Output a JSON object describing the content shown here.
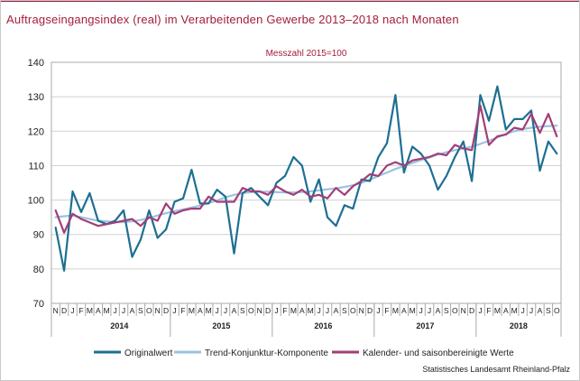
{
  "title": "Auftragseingangsindex (real) im Verarbeitenden Gewerbe 2013–2018 nach Monaten",
  "source": "Statistisches Landesamt  Rheinland-Pfalz",
  "chart_data": {
    "type": "line",
    "subtitle": "Messzahl 2015=100",
    "ylim": [
      70,
      140
    ],
    "yticks": [
      70,
      80,
      90,
      100,
      110,
      120,
      130,
      140
    ],
    "grid": true,
    "legend_position": "bottom",
    "x": [
      "N",
      "D",
      "J",
      "F",
      "M",
      "A",
      "M",
      "J",
      "J",
      "A",
      "S",
      "O",
      "N",
      "D",
      "J",
      "F",
      "M",
      "A",
      "M",
      "J",
      "J",
      "A",
      "S",
      "O",
      "N",
      "D",
      "J",
      "F",
      "M",
      "A",
      "M",
      "J",
      "J",
      "A",
      "S",
      "O",
      "N",
      "D",
      "J",
      "F",
      "M",
      "A",
      "M",
      "J",
      "J",
      "A",
      "S",
      "O",
      "N",
      "D",
      "J",
      "F",
      "M",
      "A",
      "M",
      "J",
      "J",
      "A",
      "S",
      "O"
    ],
    "years": [
      {
        "label": "2014",
        "start": 2,
        "end": 13
      },
      {
        "label": "2015",
        "start": 14,
        "end": 25
      },
      {
        "label": "2016",
        "start": 26,
        "end": 37
      },
      {
        "label": "2017",
        "start": 38,
        "end": 49
      },
      {
        "label": "2018",
        "start": 50,
        "end": 59
      }
    ],
    "series": [
      {
        "name": "Originalwert",
        "color": "#1d6f93",
        "width": 2.2,
        "values": [
          92.0,
          79.5,
          102.5,
          96.5,
          102.0,
          94.0,
          93.0,
          94.0,
          97.0,
          83.5,
          88.5,
          97.0,
          89.0,
          91.5,
          99.5,
          100.5,
          108.8,
          99.0,
          99.0,
          103.0,
          101.0,
          84.5,
          102.0,
          103.5,
          101.0,
          98.5,
          105.0,
          107.0,
          112.5,
          110.0,
          99.5,
          106.0,
          95.0,
          92.5,
          98.5,
          97.5,
          106.0,
          105.5,
          112.5,
          116.5,
          130.5,
          108.0,
          115.5,
          113.5,
          110.0,
          103.0,
          107.0,
          112.5,
          117.0,
          105.5,
          130.5,
          123.0,
          133.0,
          120.5,
          123.5,
          123.5,
          126.0,
          108.5,
          117.0,
          113.5
        ]
      },
      {
        "name": "Trend-Konjunktur-Komponente",
        "color": "#9bc3e0",
        "width": 2.2,
        "values": [
          95.0,
          95.3,
          95.5,
          95.0,
          94.5,
          94.0,
          93.8,
          93.6,
          93.6,
          93.8,
          94.2,
          94.8,
          95.5,
          96.2,
          96.8,
          97.3,
          97.8,
          98.4,
          99.1,
          99.9,
          100.8,
          101.5,
          102.0,
          102.3,
          102.4,
          102.4,
          102.3,
          102.2,
          102.2,
          102.3,
          102.5,
          102.8,
          103.1,
          103.4,
          103.8,
          104.3,
          105.0,
          105.9,
          107.0,
          108.0,
          109.0,
          109.9,
          110.8,
          111.6,
          112.4,
          113.2,
          113.9,
          114.5,
          115.0,
          115.5,
          116.3,
          117.2,
          118.2,
          119.2,
          120.0,
          120.6,
          121.0,
          121.3,
          121.5,
          121.6
        ]
      },
      {
        "name": "Kalender- und saisonbereinigte Werte",
        "color": "#a23e78",
        "width": 2.2,
        "values": [
          97.0,
          90.5,
          96.0,
          94.5,
          93.5,
          92.5,
          93.0,
          93.5,
          94.0,
          94.5,
          92.5,
          95.0,
          94.0,
          99.0,
          96.0,
          97.0,
          97.5,
          97.5,
          101.0,
          99.5,
          99.5,
          99.5,
          103.5,
          102.5,
          102.5,
          101.5,
          104.0,
          102.5,
          101.5,
          103.0,
          101.0,
          101.5,
          100.5,
          103.5,
          101.5,
          104.0,
          105.5,
          107.5,
          107.0,
          110.0,
          111.0,
          110.0,
          111.5,
          112.0,
          112.5,
          113.5,
          113.0,
          116.0,
          115.0,
          114.5,
          127.5,
          116.0,
          118.5,
          119.0,
          121.0,
          120.5,
          125.0,
          119.5,
          125.0,
          118.5
        ]
      }
    ],
    "source": "Statistisches Landesamt  Rheinland-Pfalz"
  }
}
